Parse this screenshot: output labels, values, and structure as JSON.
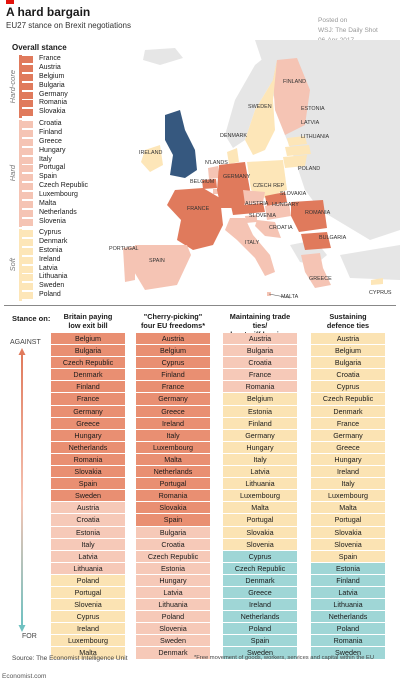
{
  "header": {
    "title": "A hard bargain",
    "subtitle": "EU27 stance on Brexit negotiations",
    "credit": [
      "Posted on",
      "WSJ: The Daily Shot",
      "06-Apr-2017"
    ]
  },
  "colors": {
    "hardcore": "#e07a5c",
    "hard": "#f5c4b4",
    "soft": "#fde6b8",
    "neutral": "#e8e8e8",
    "uk": "#36587f",
    "against_strong": "#e98f72",
    "against_mild": "#f6c9b8",
    "neutral_cell": "#fbe3b3",
    "for_cell": "#9fd6d6"
  },
  "legend": {
    "heading": "Overall stance",
    "groups": [
      {
        "key": "hardcore",
        "label": "Hard-core",
        "countries": [
          "France",
          "Austria",
          "Belgium",
          "Bulgaria",
          "Germany",
          "Romania",
          "Slovakia"
        ]
      },
      {
        "key": "hard",
        "label": "Hard",
        "countries": [
          "Croatia",
          "Finland",
          "Greece",
          "Hungary",
          "Italy",
          "Portugal",
          "Spain",
          "Czech Republic",
          "Luxembourg",
          "Malta",
          "Netherlands",
          "Slovenia"
        ]
      },
      {
        "key": "soft",
        "label": "Soft",
        "countries": [
          "Cyprus",
          "Denmark",
          "Estonia",
          "Ireland",
          "Latvia",
          "Lithuania",
          "Sweden",
          "Poland"
        ]
      }
    ]
  },
  "map": {
    "labels": [
      "FINLAND",
      "SWEDEN",
      "ESTONIA",
      "LATVIA",
      "LITHUANIA",
      "DENMARK",
      "IRELAND",
      "N'LANDS",
      "POLAND",
      "GERMANY",
      "BELGIUM",
      "CZECH REP",
      "SLOVAKIA",
      "AUSTRIA",
      "HUNGARY",
      "FRANCE",
      "SLOVENIA",
      "ROMANIA",
      "CROATIA",
      "BULGARIA",
      "ITALY",
      "PORTUGAL",
      "SPAIN",
      "GREECE",
      "MALTA",
      "CYPRUS"
    ]
  },
  "stance_heading": "Stance on:",
  "axis": {
    "against": "AGAINST",
    "for": "FOR"
  },
  "chart_data": {
    "type": "table",
    "columns": [
      {
        "header": [
          "Britain paying",
          "low exit bill"
        ],
        "cells": [
          [
            "Belgium",
            "S"
          ],
          [
            "Bulgaria",
            "S"
          ],
          [
            "Czech Republic",
            "S"
          ],
          [
            "Denmark",
            "S"
          ],
          [
            "Finland",
            "S"
          ],
          [
            "France",
            "S"
          ],
          [
            "Germany",
            "S"
          ],
          [
            "Greece",
            "S"
          ],
          [
            "Hungary",
            "S"
          ],
          [
            "Netherlands",
            "S"
          ],
          [
            "Romania",
            "S"
          ],
          [
            "Slovakia",
            "S"
          ],
          [
            "Spain",
            "S"
          ],
          [
            "Sweden",
            "S"
          ],
          [
            "Austria",
            "M"
          ],
          [
            "Croatia",
            "M"
          ],
          [
            "Estonia",
            "M"
          ],
          [
            "Italy",
            "M"
          ],
          [
            "Latvia",
            "M"
          ],
          [
            "Lithuania",
            "M"
          ],
          [
            "Poland",
            "N"
          ],
          [
            "Portugal",
            "N"
          ],
          [
            "Slovenia",
            "N"
          ],
          [
            "Cyprus",
            "N"
          ],
          [
            "Ireland",
            "N"
          ],
          [
            "Luxembourg",
            "N"
          ],
          [
            "Malta",
            "N"
          ]
        ]
      },
      {
        "header": [
          "\"Cherry-picking\"",
          "four EU freedoms*"
        ],
        "cells": [
          [
            "Austria",
            "S"
          ],
          [
            "Belgium",
            "S"
          ],
          [
            "Cyprus",
            "S"
          ],
          [
            "Finland",
            "S"
          ],
          [
            "France",
            "S"
          ],
          [
            "Germany",
            "S"
          ],
          [
            "Greece",
            "S"
          ],
          [
            "Ireland",
            "S"
          ],
          [
            "Italy",
            "S"
          ],
          [
            "Luxembourg",
            "S"
          ],
          [
            "Malta",
            "S"
          ],
          [
            "Netherlands",
            "S"
          ],
          [
            "Portugal",
            "S"
          ],
          [
            "Romania",
            "S"
          ],
          [
            "Slovakia",
            "S"
          ],
          [
            "Spain",
            "S"
          ],
          [
            "Bulgaria",
            "M"
          ],
          [
            "Croatia",
            "M"
          ],
          [
            "Czech Republic",
            "M"
          ],
          [
            "Estonia",
            "M"
          ],
          [
            "Hungary",
            "M"
          ],
          [
            "Latvia",
            "M"
          ],
          [
            "Lithuania",
            "M"
          ],
          [
            "Poland",
            "M"
          ],
          [
            "Slovenia",
            "M"
          ],
          [
            "Sweden",
            "M"
          ],
          [
            "Denmark",
            "M"
          ]
        ]
      },
      {
        "header": [
          "Maintaining trade ties/",
          "low tariff barriers"
        ],
        "cells": [
          [
            "Austria",
            "M"
          ],
          [
            "Bulgaria",
            "M"
          ],
          [
            "Croatia",
            "M"
          ],
          [
            "France",
            "M"
          ],
          [
            "Romania",
            "M"
          ],
          [
            "Belgium",
            "N"
          ],
          [
            "Estonia",
            "N"
          ],
          [
            "Finland",
            "N"
          ],
          [
            "Germany",
            "N"
          ],
          [
            "Hungary",
            "N"
          ],
          [
            "Italy",
            "N"
          ],
          [
            "Latvia",
            "N"
          ],
          [
            "Lithuania",
            "N"
          ],
          [
            "Luxembourg",
            "N"
          ],
          [
            "Malta",
            "N"
          ],
          [
            "Portugal",
            "N"
          ],
          [
            "Slovakia",
            "N"
          ],
          [
            "Slovenia",
            "N"
          ],
          [
            "Cyprus",
            "F"
          ],
          [
            "Czech Republic",
            "F"
          ],
          [
            "Denmark",
            "F"
          ],
          [
            "Greece",
            "F"
          ],
          [
            "Ireland",
            "F"
          ],
          [
            "Netherlands",
            "F"
          ],
          [
            "Poland",
            "F"
          ],
          [
            "Spain",
            "F"
          ],
          [
            "Sweden",
            "F"
          ]
        ]
      },
      {
        "header": [
          "Sustaining",
          "defence ties"
        ],
        "cells": [
          [
            "Austria",
            "N"
          ],
          [
            "Belgium",
            "N"
          ],
          [
            "Bulgaria",
            "N"
          ],
          [
            "Croatia",
            "N"
          ],
          [
            "Cyprus",
            "N"
          ],
          [
            "Czech Republic",
            "N"
          ],
          [
            "Denmark",
            "N"
          ],
          [
            "France",
            "N"
          ],
          [
            "Germany",
            "N"
          ],
          [
            "Greece",
            "N"
          ],
          [
            "Hungary",
            "N"
          ],
          [
            "Ireland",
            "N"
          ],
          [
            "Italy",
            "N"
          ],
          [
            "Luxembourg",
            "N"
          ],
          [
            "Malta",
            "N"
          ],
          [
            "Portugal",
            "N"
          ],
          [
            "Slovakia",
            "N"
          ],
          [
            "Slovenia",
            "N"
          ],
          [
            "Spain",
            "N"
          ],
          [
            "Estonia",
            "F"
          ],
          [
            "Finland",
            "F"
          ],
          [
            "Latvia",
            "F"
          ],
          [
            "Lithuania",
            "F"
          ],
          [
            "Netherlands",
            "F"
          ],
          [
            "Poland",
            "F"
          ],
          [
            "Romania",
            "F"
          ],
          [
            "Sweden",
            "F"
          ]
        ]
      }
    ]
  },
  "footer": {
    "source": "Source: The Economist Intelligence Unit",
    "footnote": "*Free movement of goods, workers, services and capital within the EU",
    "site": "Economist.com"
  }
}
